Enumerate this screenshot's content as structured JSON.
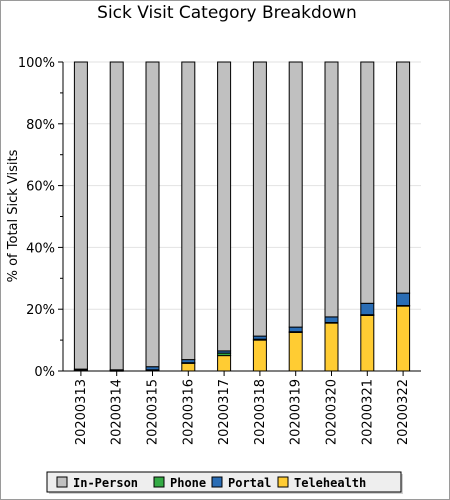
{
  "chart_data": {
    "type": "bar",
    "stacked": true,
    "title": "Sick Visit Category Breakdown",
    "xlabel": "",
    "ylabel": "% of Total Sick Visits",
    "ylim": [
      0,
      100
    ],
    "y_ticks": [
      "0%",
      "20%",
      "40%",
      "60%",
      "80%",
      "100%"
    ],
    "grid": true,
    "legend_position": "bottom",
    "categories": [
      "20200313",
      "20200314",
      "20200315",
      "20200316",
      "20200317",
      "20200318",
      "20200319",
      "20200320",
      "20200321",
      "20200322"
    ],
    "series": [
      {
        "name": "Telehealth",
        "color": "#ffcc33",
        "values": [
          0.2,
          0.1,
          0.3,
          2.5,
          5.0,
          10.0,
          12.5,
          15.5,
          18.0,
          21.0
        ]
      },
      {
        "name": "Phone",
        "color": "#33aa44",
        "values": [
          0.1,
          0.1,
          0.1,
          0.2,
          0.8,
          0.3,
          0.2,
          0.2,
          0.2,
          0.2
        ]
      },
      {
        "name": "Portal",
        "color": "#2a6db5",
        "values": [
          0.3,
          0.2,
          1.0,
          1.0,
          0.7,
          1.0,
          1.5,
          1.8,
          3.7,
          4.0
        ]
      },
      {
        "name": "In-Person",
        "color": "#c0c0c0",
        "values": [
          99.4,
          99.6,
          98.6,
          96.3,
          93.5,
          88.7,
          85.8,
          82.5,
          78.1,
          74.8
        ]
      }
    ],
    "legend_order": [
      "In-Person",
      "Phone",
      "Portal",
      "Telehealth"
    ]
  }
}
